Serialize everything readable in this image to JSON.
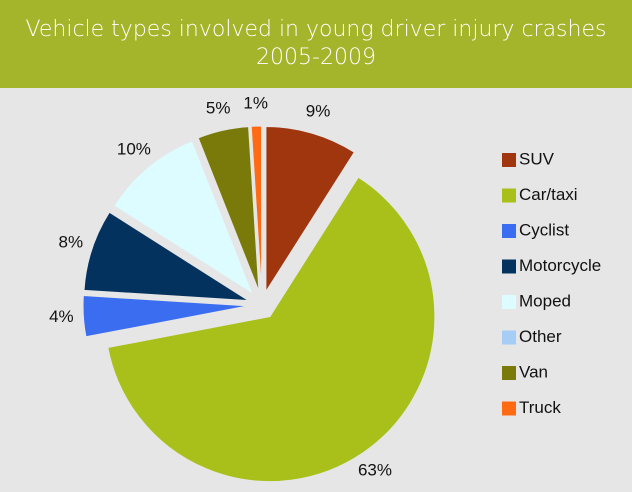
{
  "chart_data": {
    "type": "pie",
    "title": "Vehicle types involved in young driver injury crashes 2005-2009",
    "categories": [
      "SUV",
      "Car/taxi",
      "Cyclist",
      "Motorcycle",
      "Moped",
      "Other",
      "Van",
      "Truck"
    ],
    "values": [
      9,
      63,
      4,
      8,
      10,
      0,
      5,
      1
    ],
    "value_labels": [
      "9%",
      "63%",
      "4%",
      "8%",
      "10%",
      null,
      "5%",
      "1%"
    ],
    "colors": [
      "#a0360e",
      "#a9c01a",
      "#3a6df0",
      "#04325f",
      "#ddfcff",
      "#a6cdf5",
      "#7a7a0a",
      "#ff6a13"
    ],
    "legend": "right"
  }
}
